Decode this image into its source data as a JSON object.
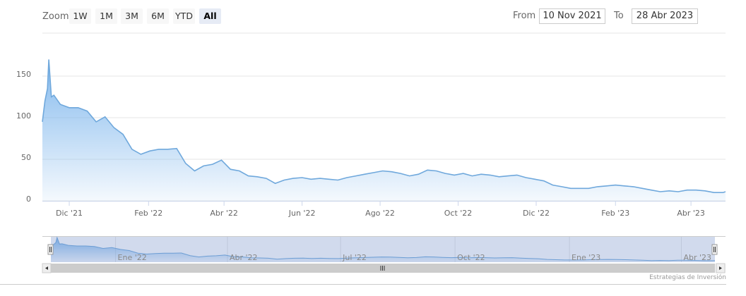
{
  "range_selector": {
    "zoom_label": "Zoom",
    "buttons": [
      "1W",
      "1M",
      "3M",
      "6M",
      "YTD",
      "All"
    ],
    "selected": "All",
    "from_label": "From",
    "from_value": "10 Nov 2021",
    "to_label": "To",
    "to_value": "28 Abr 2023"
  },
  "credit": "Estrategias de Inversión",
  "colors": {
    "series": "#7cb5ec",
    "line": "#6fa8dc",
    "grid": "#e6e6e6",
    "navigator_mask": "rgba(102,133,194,0.3)",
    "scrollbar": "#cccccc"
  },
  "chart_data": {
    "type": "area",
    "xlim": [
      "2021-11-10",
      "2023-04-28"
    ],
    "ylim": [
      0,
      190
    ],
    "y_ticks": [
      0,
      50,
      100,
      150
    ],
    "grid": true,
    "x_ticks": [
      {
        "date": "2021-12-01",
        "label": "Dic '21"
      },
      {
        "date": "2022-02-01",
        "label": "Feb '22"
      },
      {
        "date": "2022-04-01",
        "label": "Abr '22"
      },
      {
        "date": "2022-06-01",
        "label": "Jun '22"
      },
      {
        "date": "2022-08-01",
        "label": "Ago '22"
      },
      {
        "date": "2022-10-01",
        "label": "Oct '22"
      },
      {
        "date": "2022-12-01",
        "label": "Dic '22"
      },
      {
        "date": "2023-02-01",
        "label": "Feb '23"
      },
      {
        "date": "2023-04-01",
        "label": "Abr '23"
      }
    ],
    "navigator_ticks": [
      {
        "date": "2022-01-01",
        "label": "Ene '22"
      },
      {
        "date": "2022-04-01",
        "label": "Abr '22"
      },
      {
        "date": "2022-07-01",
        "label": "Jul '22"
      },
      {
        "date": "2022-10-01",
        "label": "Oct '22"
      },
      {
        "date": "2023-01-01",
        "label": "Ene '23"
      },
      {
        "date": "2023-04-01",
        "label": "Abr '23"
      }
    ],
    "series": [
      {
        "points": [
          [
            "2021-11-10",
            95
          ],
          [
            "2021-11-12",
            120
          ],
          [
            "2021-11-14",
            135
          ],
          [
            "2021-11-15",
            170
          ],
          [
            "2021-11-17",
            125
          ],
          [
            "2021-11-19",
            127
          ],
          [
            "2021-11-24",
            116
          ],
          [
            "2021-12-01",
            112
          ],
          [
            "2021-12-08",
            112
          ],
          [
            "2021-12-15",
            108
          ],
          [
            "2021-12-22",
            95
          ],
          [
            "2021-12-29",
            101
          ],
          [
            "2022-01-05",
            88
          ],
          [
            "2022-01-12",
            80
          ],
          [
            "2022-01-19",
            62
          ],
          [
            "2022-01-26",
            56
          ],
          [
            "2022-02-02",
            60
          ],
          [
            "2022-02-09",
            62
          ],
          [
            "2022-02-16",
            62
          ],
          [
            "2022-02-23",
            63
          ],
          [
            "2022-03-02",
            45
          ],
          [
            "2022-03-09",
            36
          ],
          [
            "2022-03-16",
            42
          ],
          [
            "2022-03-23",
            44
          ],
          [
            "2022-03-30",
            49
          ],
          [
            "2022-04-06",
            38
          ],
          [
            "2022-04-13",
            36
          ],
          [
            "2022-04-20",
            30
          ],
          [
            "2022-04-27",
            29
          ],
          [
            "2022-05-04",
            27
          ],
          [
            "2022-05-11",
            21
          ],
          [
            "2022-05-18",
            25
          ],
          [
            "2022-05-25",
            27
          ],
          [
            "2022-06-01",
            28
          ],
          [
            "2022-06-08",
            26
          ],
          [
            "2022-06-15",
            27
          ],
          [
            "2022-06-22",
            26
          ],
          [
            "2022-06-29",
            25
          ],
          [
            "2022-07-06",
            28
          ],
          [
            "2022-07-13",
            30
          ],
          [
            "2022-07-20",
            32
          ],
          [
            "2022-07-27",
            34
          ],
          [
            "2022-08-03",
            36
          ],
          [
            "2022-08-10",
            35
          ],
          [
            "2022-08-17",
            33
          ],
          [
            "2022-08-24",
            30
          ],
          [
            "2022-08-31",
            32
          ],
          [
            "2022-09-07",
            37
          ],
          [
            "2022-09-14",
            36
          ],
          [
            "2022-09-21",
            33
          ],
          [
            "2022-09-28",
            31
          ],
          [
            "2022-10-05",
            33
          ],
          [
            "2022-10-12",
            30
          ],
          [
            "2022-10-19",
            32
          ],
          [
            "2022-10-26",
            31
          ],
          [
            "2022-11-02",
            29
          ],
          [
            "2022-11-09",
            30
          ],
          [
            "2022-11-16",
            31
          ],
          [
            "2022-11-23",
            28
          ],
          [
            "2022-11-30",
            26
          ],
          [
            "2022-12-07",
            24
          ],
          [
            "2022-12-14",
            19
          ],
          [
            "2022-12-21",
            17
          ],
          [
            "2022-12-28",
            15
          ],
          [
            "2023-01-04",
            15
          ],
          [
            "2023-01-11",
            15
          ],
          [
            "2023-01-18",
            17
          ],
          [
            "2023-01-25",
            18
          ],
          [
            "2023-02-01",
            19
          ],
          [
            "2023-02-08",
            18
          ],
          [
            "2023-02-15",
            17
          ],
          [
            "2023-02-22",
            15
          ],
          [
            "2023-03-01",
            13
          ],
          [
            "2023-03-08",
            11
          ],
          [
            "2023-03-15",
            12
          ],
          [
            "2023-03-22",
            11
          ],
          [
            "2023-03-29",
            13
          ],
          [
            "2023-04-05",
            13
          ],
          [
            "2023-04-12",
            12
          ],
          [
            "2023-04-19",
            10
          ],
          [
            "2023-04-26",
            10
          ],
          [
            "2023-04-28",
            11
          ]
        ]
      }
    ]
  }
}
